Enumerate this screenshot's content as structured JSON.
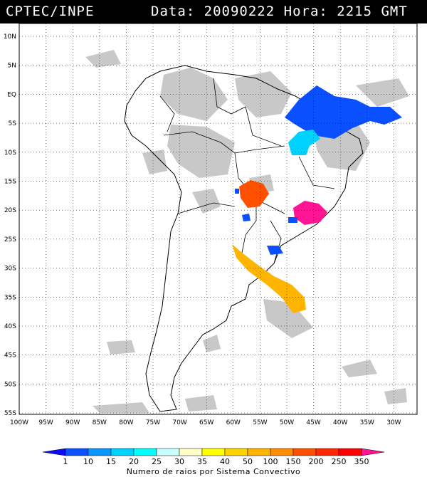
{
  "header": {
    "source": "CPTEC/INPE",
    "date_label": "Data:",
    "date_value": "20090222",
    "time_label": "Hora:",
    "time_value": "2215 GMT"
  },
  "lat_labels": [
    "10N",
    "5N",
    "EQ",
    "5S",
    "10S",
    "15S",
    "20S",
    "25S",
    "30S",
    "35S",
    "40S",
    "45S",
    "50S",
    "55S"
  ],
  "lon_labels": [
    "100W",
    "95W",
    "90W",
    "85W",
    "80W",
    "75W",
    "70W",
    "65W",
    "60W",
    "55W",
    "50W",
    "45W",
    "40W",
    "35W",
    "30W"
  ],
  "legend": {
    "values": [
      "1",
      "10",
      "15",
      "20",
      "25",
      "30",
      "35",
      "40",
      "50",
      "100",
      "150",
      "200",
      "250",
      "350"
    ],
    "colors": [
      "#0a0aff",
      "#0a50ff",
      "#0a96ff",
      "#00d2ff",
      "#00ffff",
      "#c8ffff",
      "#ffffc8",
      "#ffff00",
      "#ffd200",
      "#ffb400",
      "#ff8c00",
      "#ff5000",
      "#ff2800",
      "#ff0000",
      "#ff1493"
    ],
    "title": "Numero de raios por Sistema Convectivo"
  }
}
